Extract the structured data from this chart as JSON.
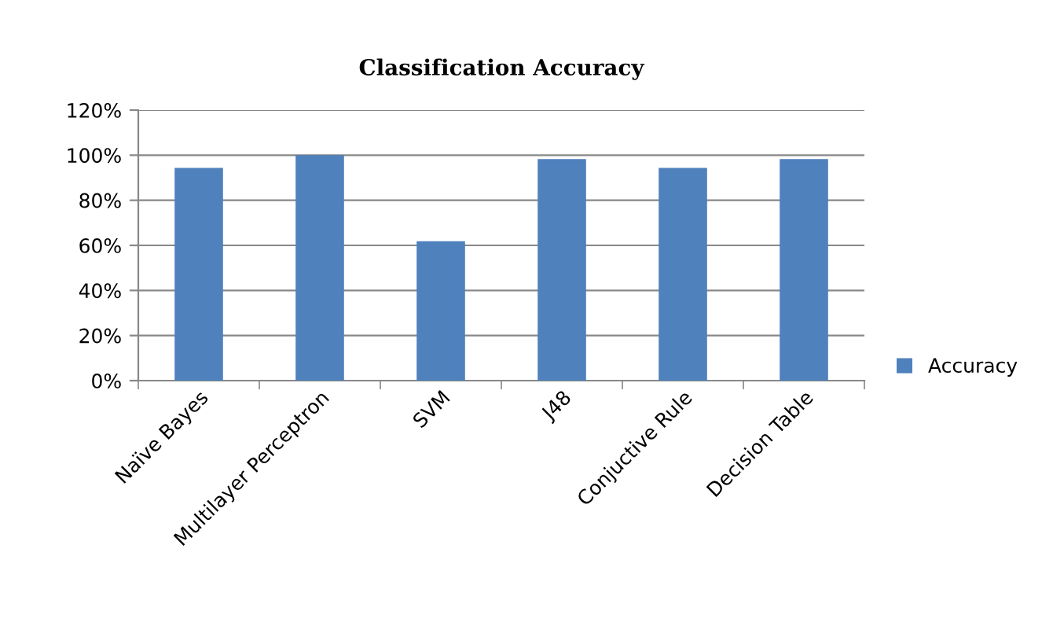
{
  "chart_data": {
    "type": "bar",
    "title": "Classification Accuracy",
    "categories": [
      "Naïve Bayes",
      "Multilayer Perceptron",
      "SVM",
      "J48",
      "Conjuctive Rule",
      "Decision Table"
    ],
    "series": [
      {
        "name": "Accuracy",
        "color": "#4f81bd",
        "values": [
          94.4,
          100,
          61.8,
          98.3,
          94.4,
          98.3
        ]
      }
    ],
    "ylim": [
      0,
      120
    ],
    "yticks": [
      {
        "value": 0,
        "label": "0%"
      },
      {
        "value": 20,
        "label": "20%"
      },
      {
        "value": 40,
        "label": "40%"
      },
      {
        "value": 60,
        "label": "60%"
      },
      {
        "value": 80,
        "label": "80%"
      },
      {
        "value": 100,
        "label": "100%"
      },
      {
        "value": 120,
        "label": "120%"
      }
    ],
    "grid": "y",
    "legend": "right"
  }
}
